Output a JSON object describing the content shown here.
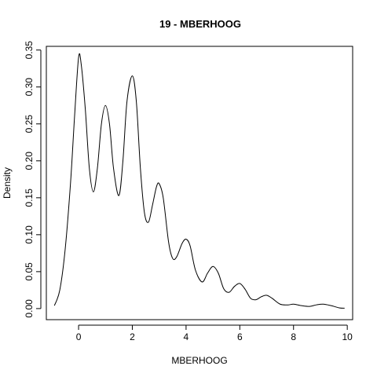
{
  "chart_data": {
    "type": "line",
    "title": "19 - MBERHOOG",
    "xlabel": "MBERHOOG",
    "ylabel": "Density",
    "xlim": [
      -1.2,
      10.2
    ],
    "ylim": [
      -0.015,
      0.355
    ],
    "xticks": [
      0,
      2,
      4,
      6,
      8,
      10
    ],
    "yticks": [
      0.0,
      0.05,
      0.1,
      0.15,
      0.2,
      0.25,
      0.3,
      0.35
    ],
    "xtick_labels": [
      "0",
      "2",
      "4",
      "6",
      "8",
      "10"
    ],
    "ytick_labels": [
      "0.00",
      "0.05",
      "0.10",
      "0.15",
      "0.20",
      "0.25",
      "0.30",
      "0.35"
    ],
    "grid": false,
    "series": [
      {
        "points": [
          [
            -0.9,
            0.004
          ],
          [
            -0.7,
            0.025
          ],
          [
            -0.5,
            0.08
          ],
          [
            -0.3,
            0.17
          ],
          [
            -0.15,
            0.26
          ],
          [
            0.0,
            0.34
          ],
          [
            0.1,
            0.33
          ],
          [
            0.25,
            0.27
          ],
          [
            0.4,
            0.19
          ],
          [
            0.55,
            0.158
          ],
          [
            0.7,
            0.19
          ],
          [
            0.85,
            0.25
          ],
          [
            1.0,
            0.275
          ],
          [
            1.15,
            0.25
          ],
          [
            1.3,
            0.19
          ],
          [
            1.5,
            0.153
          ],
          [
            1.65,
            0.2
          ],
          [
            1.8,
            0.28
          ],
          [
            2.0,
            0.315
          ],
          [
            2.15,
            0.28
          ],
          [
            2.3,
            0.19
          ],
          [
            2.45,
            0.13
          ],
          [
            2.6,
            0.117
          ],
          [
            2.75,
            0.14
          ],
          [
            2.9,
            0.165
          ],
          [
            3.0,
            0.169
          ],
          [
            3.15,
            0.15
          ],
          [
            3.35,
            0.09
          ],
          [
            3.5,
            0.068
          ],
          [
            3.65,
            0.07
          ],
          [
            3.85,
            0.088
          ],
          [
            4.0,
            0.094
          ],
          [
            4.15,
            0.085
          ],
          [
            4.35,
            0.052
          ],
          [
            4.6,
            0.036
          ],
          [
            4.8,
            0.048
          ],
          [
            5.0,
            0.057
          ],
          [
            5.2,
            0.048
          ],
          [
            5.4,
            0.027
          ],
          [
            5.6,
            0.022
          ],
          [
            5.8,
            0.03
          ],
          [
            6.0,
            0.034
          ],
          [
            6.2,
            0.026
          ],
          [
            6.4,
            0.014
          ],
          [
            6.6,
            0.012
          ],
          [
            6.8,
            0.016
          ],
          [
            7.0,
            0.018
          ],
          [
            7.2,
            0.014
          ],
          [
            7.5,
            0.006
          ],
          [
            7.8,
            0.005
          ],
          [
            8.0,
            0.006
          ],
          [
            8.3,
            0.004
          ],
          [
            8.6,
            0.003
          ],
          [
            8.85,
            0.005
          ],
          [
            9.1,
            0.006
          ],
          [
            9.4,
            0.004
          ],
          [
            9.7,
            0.001
          ],
          [
            9.9,
            0.0005
          ]
        ]
      }
    ]
  }
}
